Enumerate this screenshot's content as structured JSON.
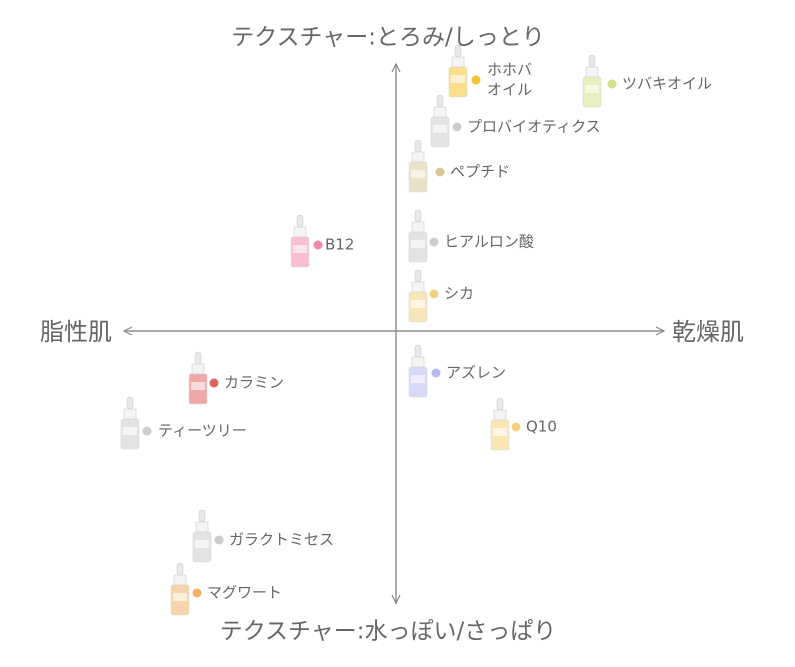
{
  "axis_labels": {
    "top": "テクスチャー:とろみ/しっとり",
    "bottom": "テクスチャー:水っぽい/さっぱり",
    "left": "脂性肌",
    "right": "乾燥肌"
  },
  "items": [
    {
      "lines": [
        "ホホバ",
        "オイル"
      ],
      "color": "#f2c230"
    },
    {
      "lines": [
        "ツバキオイル"
      ],
      "color": "#d5e08a"
    },
    {
      "lines": [
        "プロバイオティクス"
      ],
      "color": "#cccccc"
    },
    {
      "lines": [
        "ペプチド"
      ],
      "color": "#d8c89a"
    },
    {
      "lines": [
        "B12"
      ],
      "color": "#f08aa8"
    },
    {
      "lines": [
        "ヒアルロン酸"
      ],
      "color": "#cccccc"
    },
    {
      "lines": [
        "シカ"
      ],
      "color": "#f0d080"
    },
    {
      "lines": [
        "カラミン"
      ],
      "color": "#e06060"
    },
    {
      "lines": [
        "アズレン"
      ],
      "color": "#b8b8f0"
    },
    {
      "lines": [
        "ティーツリー"
      ],
      "color": "#cccccc"
    },
    {
      "lines": [
        "Q10"
      ],
      "color": "#f5d078"
    },
    {
      "lines": [
        "ガラクトミセス"
      ],
      "color": "#cccccc"
    },
    {
      "lines": [
        "マグワート"
      ],
      "color": "#f0b060"
    }
  ]
}
